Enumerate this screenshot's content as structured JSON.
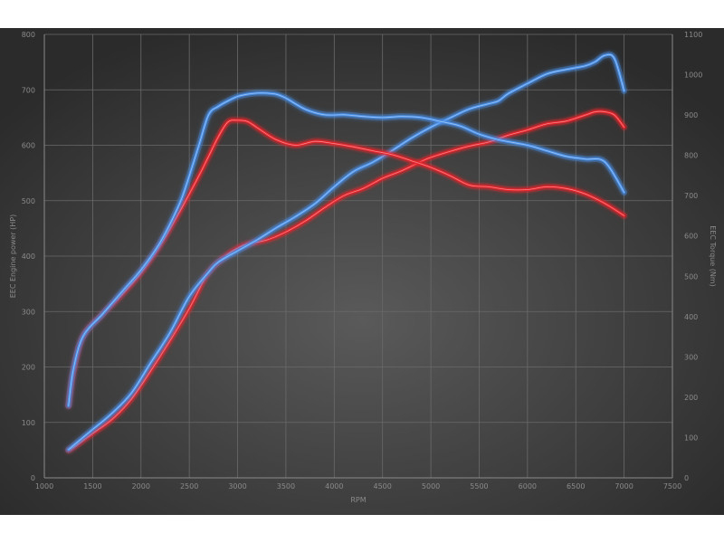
{
  "chart_data": {
    "type": "line",
    "title": "",
    "xlabel": "RPM",
    "ylabel_left": "EEC Engine power (HP)",
    "ylabel_right": "EEC Torque (Nm)",
    "xlim": [
      1000,
      7500
    ],
    "ylim_left": [
      0,
      800
    ],
    "ylim_right": [
      0,
      1100
    ],
    "x_ticks": [
      1000,
      1500,
      2000,
      2500,
      3000,
      3500,
      4000,
      4500,
      5000,
      5500,
      6000,
      6500,
      7000,
      7500
    ],
    "y_left_ticks": [
      0,
      100,
      200,
      300,
      400,
      500,
      600,
      700,
      800
    ],
    "y_right_ticks": [
      0,
      100,
      200,
      300,
      400,
      500,
      600,
      700,
      800,
      900,
      1000,
      1100
    ],
    "grid": true,
    "legend": "none",
    "background": "#2e2e2e",
    "series": [
      {
        "axis": "right",
        "color": "#e8242c",
        "x": [
          1250,
          1300,
          1500,
          1700,
          1900,
          2100,
          2300,
          2500,
          2650,
          2700,
          2800,
          2900,
          3000,
          3100,
          3300,
          3500,
          3700,
          3900,
          4100,
          4300,
          4500,
          4700,
          4900,
          5000,
          5200,
          5400,
          5600,
          5800,
          6000,
          6200,
          6400,
          6600,
          6700,
          6800,
          6900,
          7000
        ],
        "y": [
          68,
          75,
          110,
          145,
          195,
          265,
          340,
          420,
          490,
          510,
          535,
          555,
          570,
          580,
          590,
          610,
          637,
          670,
          700,
          718,
          743,
          762,
          785,
          795,
          810,
          823,
          833,
          850,
          863,
          878,
          885,
          900,
          908,
          908,
          900,
          870
        ]
      },
      {
        "axis": "right",
        "color": "#4a90e8",
        "x": [
          1250,
          1300,
          1500,
          1700,
          1900,
          2100,
          2300,
          2500,
          2700,
          2800,
          3000,
          3200,
          3400,
          3600,
          3800,
          4000,
          4200,
          4400,
          4600,
          4800,
          5000,
          5200,
          5400,
          5600,
          5700,
          5800,
          6000,
          6200,
          6400,
          6600,
          6700,
          6800,
          6900,
          7000
        ],
        "y": [
          70,
          80,
          120,
          160,
          210,
          285,
          360,
          450,
          510,
          535,
          563,
          590,
          620,
          648,
          680,
          722,
          760,
          783,
          812,
          843,
          870,
          893,
          915,
          928,
          935,
          953,
          978,
          1002,
          1013,
          1022,
          1032,
          1048,
          1040,
          960
        ]
      },
      {
        "axis": "left",
        "color": "#e8242c",
        "x": [
          1250,
          1300,
          1400,
          1600,
          1800,
          2000,
          2200,
          2400,
          2600,
          2700,
          2800,
          2900,
          3000,
          3100,
          3200,
          3400,
          3600,
          3800,
          4000,
          4200,
          4400,
          4600,
          4800,
          5000,
          5200,
          5400,
          5600,
          5800,
          6000,
          6200,
          6400,
          6600,
          6800,
          7000
        ],
        "y": [
          130,
          190,
          255,
          295,
          330,
          370,
          420,
          480,
          545,
          580,
          615,
          642,
          645,
          643,
          632,
          610,
          600,
          607,
          603,
          597,
          590,
          583,
          572,
          560,
          545,
          528,
          525,
          520,
          520,
          525,
          522,
          512,
          495,
          473
        ]
      },
      {
        "axis": "left",
        "color": "#4a90e8",
        "x": [
          1250,
          1300,
          1400,
          1600,
          1800,
          2000,
          2200,
          2400,
          2500,
          2600,
          2700,
          2800,
          2900,
          3000,
          3100,
          3200,
          3300,
          3400,
          3500,
          3700,
          3900,
          4100,
          4300,
          4500,
          4700,
          4900,
          5100,
          5300,
          5500,
          5700,
          6000,
          6200,
          6400,
          6600,
          6800,
          7000
        ],
        "y": [
          130,
          195,
          255,
          295,
          335,
          375,
          425,
          495,
          545,
          600,
          655,
          670,
          680,
          688,
          692,
          694,
          694,
          692,
          685,
          665,
          655,
          655,
          652,
          650,
          652,
          650,
          643,
          635,
          620,
          610,
          600,
          590,
          580,
          575,
          570,
          515
        ]
      }
    ]
  }
}
